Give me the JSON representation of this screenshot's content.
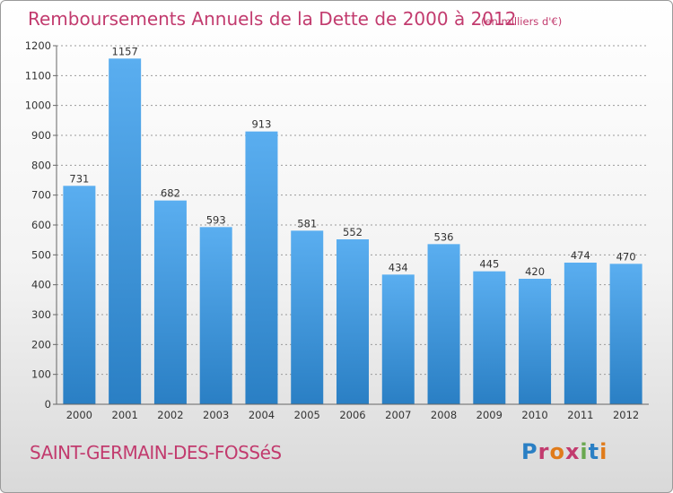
{
  "title": "Remboursements Annuels de la Dette de 2000 à 2012",
  "unit": "(en milliers d'€)",
  "city": "SAINT-GERMAIN-DES-FOSSéS",
  "brand": "Proxiti",
  "colors": {
    "bar_top": "#5aaef0",
    "bar_bottom": "#2a7fc4",
    "title": "#c23b6e",
    "brand_letters": [
      "#2a7fc4",
      "#c23b6e",
      "#e07b1a",
      "#c23b6e",
      "#6aa84f",
      "#2a7fc4",
      "#e07b1a"
    ]
  },
  "chart_data": {
    "type": "bar",
    "title": "Remboursements Annuels de la Dette de 2000 à 2012",
    "subtitle": "(en milliers d'€)",
    "categories": [
      "2000",
      "2001",
      "2002",
      "2003",
      "2004",
      "2005",
      "2006",
      "2007",
      "2008",
      "2009",
      "2010",
      "2011",
      "2012"
    ],
    "values": [
      731,
      1157,
      682,
      593,
      913,
      581,
      552,
      434,
      536,
      445,
      420,
      474,
      470
    ],
    "ylim": [
      0,
      1200
    ],
    "yticks": [
      0,
      100,
      200,
      300,
      400,
      500,
      600,
      700,
      800,
      900,
      1000,
      1100,
      1200
    ],
    "grid": true,
    "legend": "none"
  }
}
